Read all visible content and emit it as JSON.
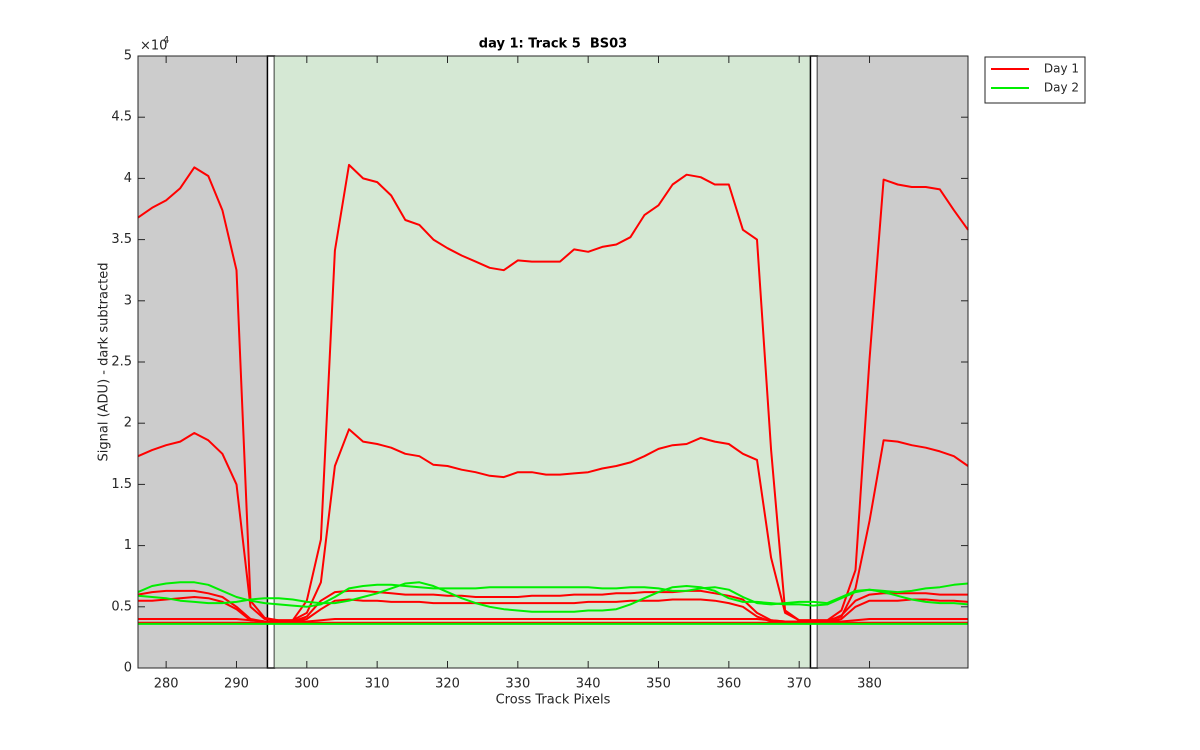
{
  "chart_data": {
    "type": "line",
    "title": "day 1: Track 5  BS03",
    "xlabel": "Cross Track Pixels",
    "ylabel": "Signal (ADU) - dark subtracted",
    "y_multiplier": {
      "base": "×10",
      "power": "4"
    },
    "legend": "outside-top-right",
    "xlim": [
      276,
      394
    ],
    "xticks": [
      280,
      290,
      300,
      310,
      320,
      330,
      340,
      350,
      360,
      370,
      380
    ],
    "ylim": [
      0,
      50000
    ],
    "yticks": [
      0,
      {
        "value": 5000,
        "label": "0.5"
      },
      {
        "value": 10000,
        "label": "1"
      },
      {
        "value": 15000,
        "label": "1.5"
      },
      {
        "value": 20000,
        "label": "2"
      },
      {
        "value": 25000,
        "label": "2.5"
      },
      {
        "value": 30000,
        "label": "3"
      },
      {
        "value": 35000,
        "label": "3.5"
      },
      {
        "value": 40000,
        "label": "4"
      },
      {
        "value": 45000,
        "label": "4.5"
      },
      {
        "value": 50000,
        "label": "5"
      }
    ],
    "regions": [
      {
        "x": [
          276,
          294.4
        ],
        "color": "#cccccc"
      },
      {
        "x": [
          294.4,
          295.4
        ],
        "color": "#ffffff",
        "edge": "#000000"
      },
      {
        "x": [
          295.4,
          371.6
        ],
        "color": "#d5e8d4"
      },
      {
        "x": [
          371.6,
          372.6
        ],
        "color": "#ffffff",
        "edge": "#000000"
      },
      {
        "x": [
          372.6,
          394
        ],
        "color": "#cccccc"
      }
    ],
    "x": [
      276,
      278,
      280,
      282,
      284,
      286,
      288,
      290,
      292,
      294,
      296,
      298,
      300,
      302,
      304,
      306,
      308,
      310,
      312,
      314,
      316,
      318,
      320,
      322,
      324,
      326,
      328,
      330,
      332,
      334,
      336,
      338,
      340,
      342,
      344,
      346,
      348,
      350,
      352,
      354,
      356,
      358,
      360,
      362,
      364,
      366,
      368,
      370,
      372,
      374,
      376,
      378,
      380,
      382,
      384,
      386,
      388,
      390,
      392,
      394
    ],
    "series": [
      {
        "name": "Day 1",
        "color": "#ff0000",
        "lines": [
          [
            36800,
            37600,
            38200,
            39200,
            40900,
            40200,
            37400,
            32500,
            5500,
            4100,
            3900,
            3900,
            5500,
            10500,
            34100,
            41100,
            40000,
            39700,
            38600,
            36600,
            36200,
            35000,
            34300,
            33700,
            33200,
            32700,
            32500,
            33300,
            33200,
            33200,
            33200,
            34200,
            34000,
            34400,
            34600,
            35200,
            37000,
            37800,
            39500,
            40300,
            40100,
            39500,
            39500,
            35800,
            35000,
            17800,
            4700,
            3900,
            3900,
            3900,
            4700,
            8000,
            25200,
            39900,
            39500,
            39300,
            39300,
            39100,
            37400,
            35800
          ],
          [
            17300,
            17800,
            18200,
            18500,
            19200,
            18600,
            17500,
            15000,
            5000,
            4000,
            3900,
            3900,
            4500,
            7000,
            16500,
            19500,
            18500,
            18300,
            18000,
            17500,
            17300,
            16600,
            16500,
            16200,
            16000,
            15700,
            15600,
            16000,
            16000,
            15800,
            15800,
            15900,
            16000,
            16300,
            16500,
            16800,
            17300,
            17900,
            18200,
            18300,
            18800,
            18500,
            18300,
            17500,
            17000,
            9000,
            4500,
            3900,
            3900,
            3900,
            4200,
            6500,
            12000,
            18600,
            18500,
            18200,
            18000,
            17700,
            17300,
            16500
          ],
          [
            6000,
            6200,
            6300,
            6300,
            6300,
            6100,
            5800,
            5000,
            4000,
            3800,
            3800,
            3800,
            4200,
            5500,
            6200,
            6300,
            6300,
            6200,
            6100,
            6000,
            6000,
            6000,
            5900,
            5900,
            5800,
            5800,
            5800,
            5800,
            5900,
            5900,
            5900,
            6000,
            6000,
            6000,
            6100,
            6100,
            6200,
            6200,
            6200,
            6300,
            6300,
            6100,
            5900,
            5600,
            4500,
            3900,
            3800,
            3800,
            3800,
            3800,
            4300,
            5500,
            6000,
            6100,
            6100,
            6100,
            6100,
            6000,
            6000,
            6000
          ],
          [
            5500,
            5500,
            5600,
            5700,
            5800,
            5700,
            5400,
            4800,
            3900,
            3800,
            3800,
            3800,
            4000,
            4800,
            5500,
            5600,
            5500,
            5500,
            5400,
            5400,
            5400,
            5300,
            5300,
            5300,
            5300,
            5300,
            5300,
            5300,
            5300,
            5300,
            5300,
            5300,
            5400,
            5400,
            5400,
            5500,
            5500,
            5500,
            5600,
            5600,
            5600,
            5500,
            5300,
            5000,
            4200,
            3800,
            3800,
            3800,
            3800,
            3800,
            4000,
            5000,
            5500,
            5500,
            5500,
            5600,
            5600,
            5500,
            5500,
            5400
          ],
          [
            4000,
            4000,
            4000,
            4000,
            4000,
            4000,
            4000,
            4000,
            3900,
            3800,
            3800,
            3800,
            3800,
            3900,
            4000,
            4000,
            4000,
            4000,
            4000,
            4000,
            4000,
            4000,
            4000,
            4000,
            4000,
            4000,
            4000,
            4000,
            4000,
            4000,
            4000,
            4000,
            4000,
            4000,
            4000,
            4000,
            4000,
            4000,
            4000,
            4000,
            4000,
            4000,
            4000,
            4000,
            4000,
            3900,
            3800,
            3800,
            3800,
            3800,
            3800,
            3900,
            4000,
            4000,
            4000,
            4000,
            4000,
            4000,
            4000,
            4000
          ],
          [
            3700,
            3700,
            3700,
            3700,
            3700,
            3700,
            3700,
            3700,
            3700,
            3700,
            3700,
            3700,
            3700,
            3700,
            3700,
            3700,
            3700,
            3700,
            3700,
            3700,
            3700,
            3700,
            3700,
            3700,
            3700,
            3700,
            3700,
            3700,
            3700,
            3700,
            3700,
            3700,
            3700,
            3700,
            3700,
            3700,
            3700,
            3700,
            3700,
            3700,
            3700,
            3700,
            3700,
            3700,
            3700,
            3700,
            3700,
            3700,
            3700,
            3700,
            3700,
            3700,
            3700,
            3700,
            3700,
            3700,
            3700,
            3700,
            3700,
            3700
          ]
        ]
      },
      {
        "name": "Day 2",
        "color": "#00ee00",
        "lines": [
          [
            6200,
            6700,
            6900,
            7000,
            7000,
            6800,
            6300,
            5800,
            5500,
            5300,
            5200,
            5100,
            5000,
            5200,
            5800,
            6500,
            6700,
            6800,
            6800,
            6700,
            6600,
            6500,
            6500,
            6500,
            6500,
            6600,
            6600,
            6600,
            6600,
            6600,
            6600,
            6600,
            6600,
            6500,
            6500,
            6600,
            6600,
            6500,
            6300,
            6300,
            6500,
            6600,
            6400,
            5800,
            5300,
            5200,
            5300,
            5400,
            5400,
            5300,
            5800,
            6300,
            6400,
            6300,
            6200,
            6300,
            6500,
            6600,
            6800,
            6900
          ],
          [
            5900,
            5800,
            5700,
            5500,
            5400,
            5300,
            5300,
            5400,
            5600,
            5700,
            5700,
            5600,
            5400,
            5300,
            5300,
            5500,
            5800,
            6100,
            6500,
            6900,
            7000,
            6700,
            6200,
            5700,
            5300,
            5000,
            4800,
            4700,
            4600,
            4600,
            4600,
            4600,
            4700,
            4700,
            4800,
            5200,
            5700,
            6200,
            6600,
            6700,
            6600,
            6300,
            5700,
            5400,
            5400,
            5300,
            5200,
            5200,
            5100,
            5200,
            5700,
            6200,
            6400,
            6200,
            5900,
            5600,
            5400,
            5300,
            5300,
            5200
          ],
          [
            3600,
            3600,
            3600,
            3600,
            3600,
            3600,
            3600,
            3600,
            3600,
            3600,
            3600,
            3600,
            3600,
            3600,
            3600,
            3600,
            3600,
            3600,
            3600,
            3600,
            3600,
            3600,
            3600,
            3600,
            3600,
            3600,
            3600,
            3600,
            3600,
            3600,
            3600,
            3600,
            3600,
            3600,
            3600,
            3600,
            3600,
            3600,
            3600,
            3600,
            3600,
            3600,
            3600,
            3600,
            3600,
            3600,
            3600,
            3600,
            3600,
            3600,
            3600,
            3600,
            3600,
            3600,
            3600,
            3600,
            3600,
            3600,
            3600,
            3600
          ]
        ]
      }
    ]
  }
}
